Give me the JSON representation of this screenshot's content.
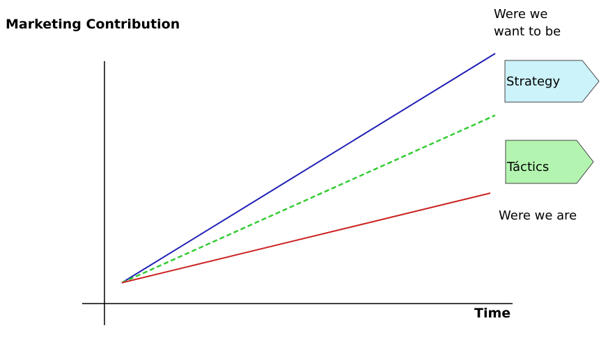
{
  "axes": {
    "y_label": "Marketing Contribution",
    "x_label": "Time"
  },
  "annotations": {
    "goal_line1": "Were we",
    "goal_line2": "want to be",
    "current": "Were we are"
  },
  "tags": {
    "strategy": "Strategy",
    "tactics": "Táctics"
  },
  "colors": {
    "goal_line": "#1f1fb4",
    "strategy_line": "#33cc33",
    "current_line": "#cc2222",
    "strategy_tag_fill": "#ccf2fa",
    "tactics_tag_fill": "#b3f5b0",
    "axis": "#000000"
  }
}
